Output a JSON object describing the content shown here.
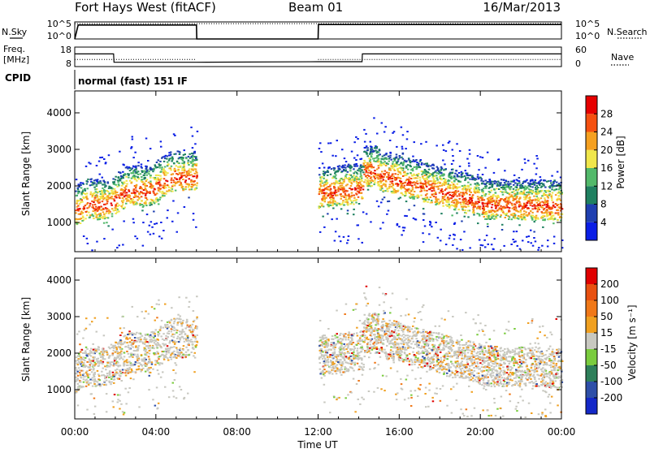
{
  "header": {
    "station": "Fort Hays West (fitACF)",
    "beam": "Beam 01",
    "date": "16/Mar/2013"
  },
  "strip_labels": {
    "nsky": "N.Sky",
    "freq_line1": "Freq.",
    "freq_line2": "[MHz]",
    "cpid": "CPID",
    "nsearch": "N.Search",
    "nave": "Nave",
    "cpid_text": "normal (fast) 151 IF"
  },
  "chart_data": [
    {
      "type": "line",
      "name": "noise",
      "y_ticks_left": [
        "10^5",
        "10^0"
      ],
      "y_ticks_right": [
        "10^5",
        "10^0"
      ],
      "series": [
        {
          "name": "N.Sky",
          "x": [
            "00:00",
            "00:10",
            "06:00",
            "06:01",
            "12:00",
            "12:01",
            "24:00"
          ],
          "values": [
            0.0,
            0.82,
            0.82,
            0.0,
            0.0,
            0.85,
            0.85
          ]
        },
        {
          "name": "N.Search",
          "x": [
            "00:00",
            "24:00"
          ],
          "values": [
            0.9,
            0.9
          ]
        }
      ]
    },
    {
      "type": "line",
      "name": "frequency",
      "y_ticks_left": [
        "18",
        "8"
      ],
      "y_ticks_right": [
        "60",
        "0"
      ],
      "series": [
        {
          "name": "Freq. [MHz]",
          "x": [
            "00:00",
            "01:55",
            "01:56",
            "06:00",
            "12:00",
            "14:10",
            "14:11",
            "24:00"
          ],
          "values": [
            14.5,
            14.5,
            10.2,
            10.2,
            10.5,
            10.5,
            14.5,
            14.5
          ]
        },
        {
          "name": "Nave",
          "x": [
            "00:00",
            "06:00",
            "12:00",
            "24:00"
          ],
          "values": [
            22,
            22,
            22,
            22
          ]
        }
      ]
    },
    {
      "type": "heatmap",
      "name": "power",
      "xlabel": "",
      "ylabel": "Slant Range [km]",
      "y_ticks": [
        1000,
        2000,
        3000,
        4000
      ],
      "ylim": [
        200,
        4600
      ],
      "colorbar_label": "Power [dB]",
      "colorbar_ticks": [
        4,
        8,
        12,
        16,
        20,
        24,
        28
      ],
      "colors": [
        "#0a1ee6",
        "#1f3fb0",
        "#1f8060",
        "#52b96a",
        "#f0e64a",
        "#f5a020",
        "#f55010",
        "#e60000"
      ]
    },
    {
      "type": "heatmap",
      "name": "velocity",
      "xlabel": "Time UT",
      "ylabel": "Slant Range [km]",
      "x_ticks": [
        "00:00",
        "04:00",
        "08:00",
        "12:00",
        "16:00",
        "20:00",
        "00:00"
      ],
      "y_ticks": [
        1000,
        2000,
        3000,
        4000
      ],
      "ylim": [
        200,
        4600
      ],
      "colorbar_label": "Velocity [m s⁻¹]",
      "colorbar_ticks": [
        "200",
        "100",
        "50",
        "15",
        "-15",
        "-50",
        "-100",
        "-200"
      ],
      "colors": [
        "#1428c8",
        "#2e4fa8",
        "#2e7f5a",
        "#7acc3e",
        "#c8c8c0",
        "#f0a020",
        "#f07818",
        "#e85010",
        "#e00000"
      ]
    }
  ]
}
